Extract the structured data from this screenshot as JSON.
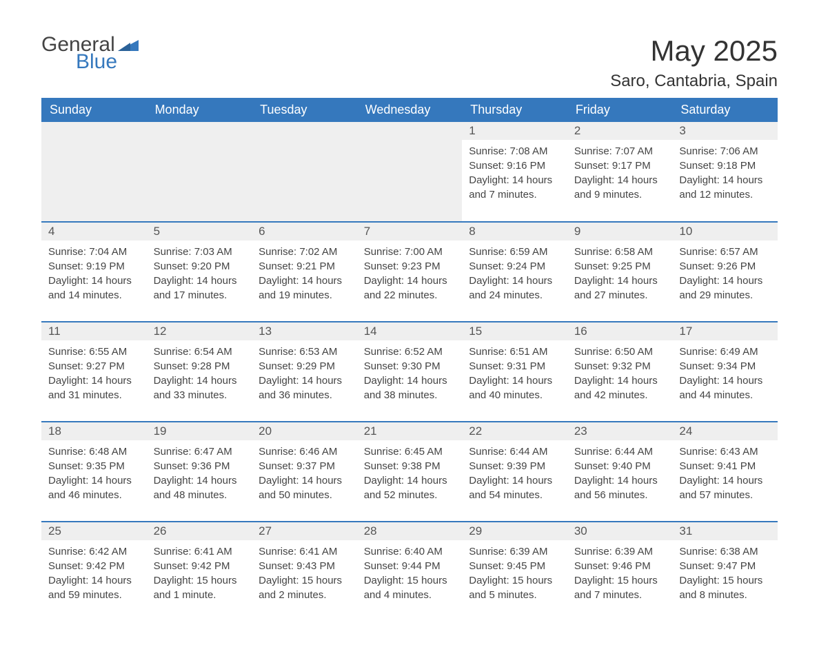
{
  "logo": {
    "line1": "General",
    "line2": "Blue",
    "triangle_color": "#3578bd"
  },
  "title": {
    "month": "May 2025",
    "location": "Saro, Cantabria, Spain"
  },
  "colors": {
    "header_bg": "#3578bd",
    "header_text": "#ffffff",
    "daynum_bg": "#efefef",
    "border": "#3578bd",
    "text": "#444444"
  },
  "day_headers": [
    "Sunday",
    "Monday",
    "Tuesday",
    "Wednesday",
    "Thursday",
    "Friday",
    "Saturday"
  ],
  "weeks": [
    [
      {
        "empty": true
      },
      {
        "empty": true
      },
      {
        "empty": true
      },
      {
        "empty": true
      },
      {
        "day": "1",
        "sunrise": "Sunrise: 7:08 AM",
        "sunset": "Sunset: 9:16 PM",
        "daylight": "Daylight: 14 hours and 7 minutes."
      },
      {
        "day": "2",
        "sunrise": "Sunrise: 7:07 AM",
        "sunset": "Sunset: 9:17 PM",
        "daylight": "Daylight: 14 hours and 9 minutes."
      },
      {
        "day": "3",
        "sunrise": "Sunrise: 7:06 AM",
        "sunset": "Sunset: 9:18 PM",
        "daylight": "Daylight: 14 hours and 12 minutes."
      }
    ],
    [
      {
        "day": "4",
        "sunrise": "Sunrise: 7:04 AM",
        "sunset": "Sunset: 9:19 PM",
        "daylight": "Daylight: 14 hours and 14 minutes."
      },
      {
        "day": "5",
        "sunrise": "Sunrise: 7:03 AM",
        "sunset": "Sunset: 9:20 PM",
        "daylight": "Daylight: 14 hours and 17 minutes."
      },
      {
        "day": "6",
        "sunrise": "Sunrise: 7:02 AM",
        "sunset": "Sunset: 9:21 PM",
        "daylight": "Daylight: 14 hours and 19 minutes."
      },
      {
        "day": "7",
        "sunrise": "Sunrise: 7:00 AM",
        "sunset": "Sunset: 9:23 PM",
        "daylight": "Daylight: 14 hours and 22 minutes."
      },
      {
        "day": "8",
        "sunrise": "Sunrise: 6:59 AM",
        "sunset": "Sunset: 9:24 PM",
        "daylight": "Daylight: 14 hours and 24 minutes."
      },
      {
        "day": "9",
        "sunrise": "Sunrise: 6:58 AM",
        "sunset": "Sunset: 9:25 PM",
        "daylight": "Daylight: 14 hours and 27 minutes."
      },
      {
        "day": "10",
        "sunrise": "Sunrise: 6:57 AM",
        "sunset": "Sunset: 9:26 PM",
        "daylight": "Daylight: 14 hours and 29 minutes."
      }
    ],
    [
      {
        "day": "11",
        "sunrise": "Sunrise: 6:55 AM",
        "sunset": "Sunset: 9:27 PM",
        "daylight": "Daylight: 14 hours and 31 minutes."
      },
      {
        "day": "12",
        "sunrise": "Sunrise: 6:54 AM",
        "sunset": "Sunset: 9:28 PM",
        "daylight": "Daylight: 14 hours and 33 minutes."
      },
      {
        "day": "13",
        "sunrise": "Sunrise: 6:53 AM",
        "sunset": "Sunset: 9:29 PM",
        "daylight": "Daylight: 14 hours and 36 minutes."
      },
      {
        "day": "14",
        "sunrise": "Sunrise: 6:52 AM",
        "sunset": "Sunset: 9:30 PM",
        "daylight": "Daylight: 14 hours and 38 minutes."
      },
      {
        "day": "15",
        "sunrise": "Sunrise: 6:51 AM",
        "sunset": "Sunset: 9:31 PM",
        "daylight": "Daylight: 14 hours and 40 minutes."
      },
      {
        "day": "16",
        "sunrise": "Sunrise: 6:50 AM",
        "sunset": "Sunset: 9:32 PM",
        "daylight": "Daylight: 14 hours and 42 minutes."
      },
      {
        "day": "17",
        "sunrise": "Sunrise: 6:49 AM",
        "sunset": "Sunset: 9:34 PM",
        "daylight": "Daylight: 14 hours and 44 minutes."
      }
    ],
    [
      {
        "day": "18",
        "sunrise": "Sunrise: 6:48 AM",
        "sunset": "Sunset: 9:35 PM",
        "daylight": "Daylight: 14 hours and 46 minutes."
      },
      {
        "day": "19",
        "sunrise": "Sunrise: 6:47 AM",
        "sunset": "Sunset: 9:36 PM",
        "daylight": "Daylight: 14 hours and 48 minutes."
      },
      {
        "day": "20",
        "sunrise": "Sunrise: 6:46 AM",
        "sunset": "Sunset: 9:37 PM",
        "daylight": "Daylight: 14 hours and 50 minutes."
      },
      {
        "day": "21",
        "sunrise": "Sunrise: 6:45 AM",
        "sunset": "Sunset: 9:38 PM",
        "daylight": "Daylight: 14 hours and 52 minutes."
      },
      {
        "day": "22",
        "sunrise": "Sunrise: 6:44 AM",
        "sunset": "Sunset: 9:39 PM",
        "daylight": "Daylight: 14 hours and 54 minutes."
      },
      {
        "day": "23",
        "sunrise": "Sunrise: 6:44 AM",
        "sunset": "Sunset: 9:40 PM",
        "daylight": "Daylight: 14 hours and 56 minutes."
      },
      {
        "day": "24",
        "sunrise": "Sunrise: 6:43 AM",
        "sunset": "Sunset: 9:41 PM",
        "daylight": "Daylight: 14 hours and 57 minutes."
      }
    ],
    [
      {
        "day": "25",
        "sunrise": "Sunrise: 6:42 AM",
        "sunset": "Sunset: 9:42 PM",
        "daylight": "Daylight: 14 hours and 59 minutes."
      },
      {
        "day": "26",
        "sunrise": "Sunrise: 6:41 AM",
        "sunset": "Sunset: 9:42 PM",
        "daylight": "Daylight: 15 hours and 1 minute."
      },
      {
        "day": "27",
        "sunrise": "Sunrise: 6:41 AM",
        "sunset": "Sunset: 9:43 PM",
        "daylight": "Daylight: 15 hours and 2 minutes."
      },
      {
        "day": "28",
        "sunrise": "Sunrise: 6:40 AM",
        "sunset": "Sunset: 9:44 PM",
        "daylight": "Daylight: 15 hours and 4 minutes."
      },
      {
        "day": "29",
        "sunrise": "Sunrise: 6:39 AM",
        "sunset": "Sunset: 9:45 PM",
        "daylight": "Daylight: 15 hours and 5 minutes."
      },
      {
        "day": "30",
        "sunrise": "Sunrise: 6:39 AM",
        "sunset": "Sunset: 9:46 PM",
        "daylight": "Daylight: 15 hours and 7 minutes."
      },
      {
        "day": "31",
        "sunrise": "Sunrise: 6:38 AM",
        "sunset": "Sunset: 9:47 PM",
        "daylight": "Daylight: 15 hours and 8 minutes."
      }
    ]
  ]
}
